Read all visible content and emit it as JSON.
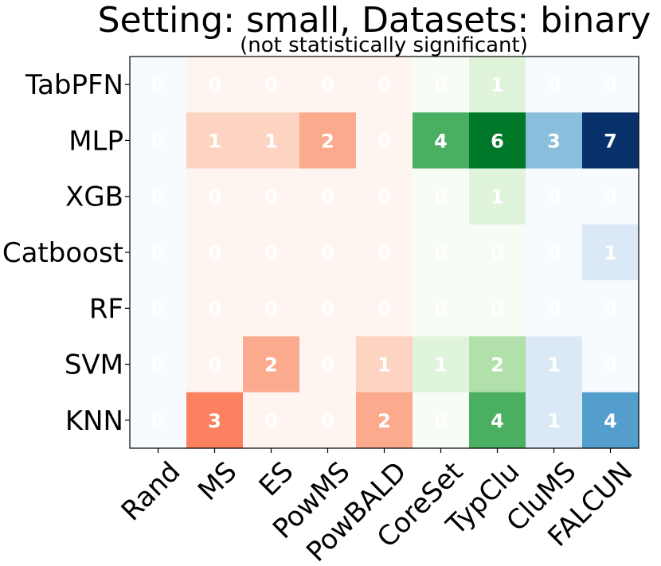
{
  "chart_data": {
    "type": "heatmap",
    "title": "Setting: small, Datasets: binary",
    "subtitle": "(not statistically significant)",
    "rows": [
      "TabPFN",
      "MLP",
      "XGB",
      "Catboost",
      "RF",
      "SVM",
      "KNN"
    ],
    "columns": [
      "Rand",
      "MS",
      "ES",
      "PowMS",
      "PowBALD",
      "CoreSet",
      "TypClu",
      "CluMS",
      "FALCUN"
    ],
    "values": [
      [
        0,
        0,
        0,
        0,
        0,
        0,
        1,
        0,
        0
      ],
      [
        0,
        1,
        1,
        2,
        0,
        4,
        6,
        3,
        7
      ],
      [
        0,
        0,
        0,
        0,
        0,
        0,
        1,
        0,
        0
      ],
      [
        0,
        0,
        0,
        0,
        0,
        0,
        0,
        0,
        1
      ],
      [
        0,
        0,
        0,
        0,
        0,
        0,
        0,
        0,
        0
      ],
      [
        0,
        0,
        2,
        0,
        1,
        1,
        2,
        1,
        0
      ],
      [
        0,
        3,
        0,
        0,
        2,
        0,
        4,
        1,
        4
      ]
    ],
    "column_colormaps": [
      "Blues",
      "Reds",
      "Reds",
      "Reds",
      "Reds",
      "Greens",
      "Greens",
      "Blues",
      "Blues"
    ],
    "colormaps": {
      "Blues": [
        "#f7fbff",
        "#dbe9f6",
        "#bad6eb",
        "#89bedc",
        "#539ecd",
        "#2b7bba",
        "#0b559f",
        "#08306b"
      ],
      "Reds": [
        "#fff5f0",
        "#fdd4c2",
        "#fcaa8e",
        "#fc8161",
        "#f44f39",
        "#d52221",
        "#aa1016",
        "#67000d"
      ],
      "Greens": [
        "#f7fcf5",
        "#e0f3db",
        "#b2e0ab",
        "#74c476",
        "#4aaf61",
        "#238b45",
        "#00782a",
        "#00441b"
      ]
    },
    "value_range": [
      0,
      7
    ],
    "cell_text_color": "#ffffff"
  }
}
